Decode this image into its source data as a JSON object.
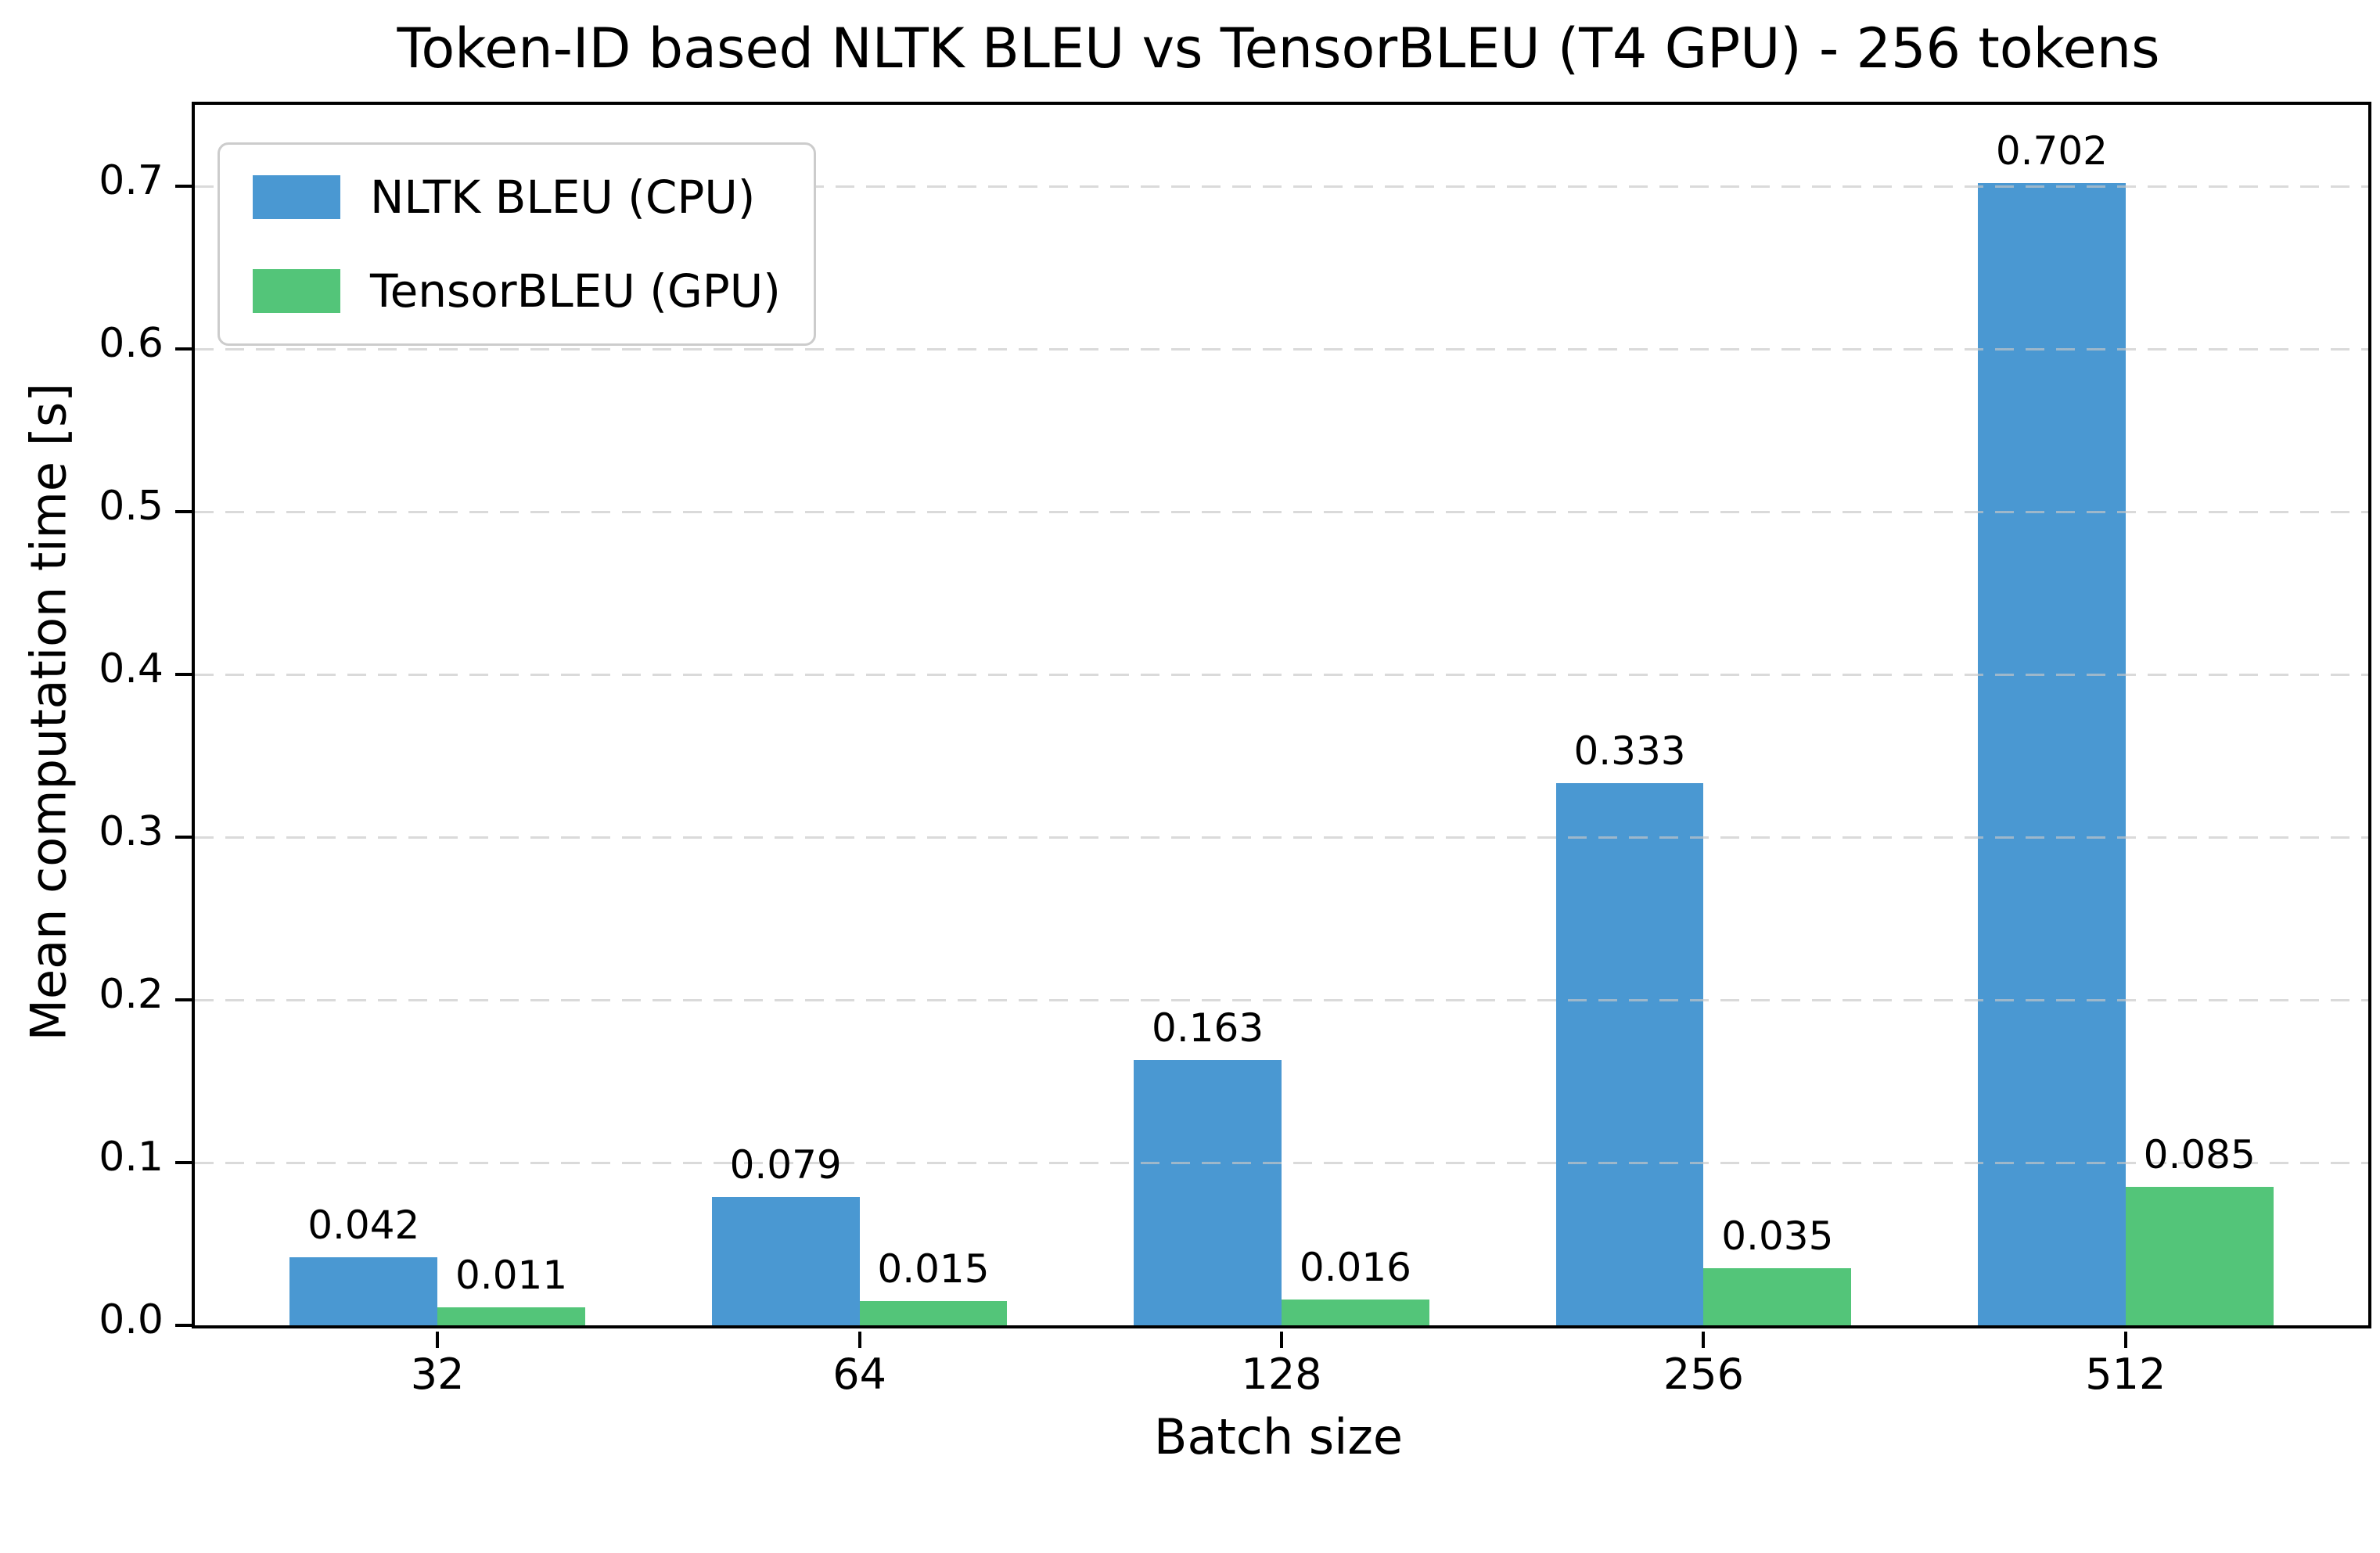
{
  "chart_data": {
    "type": "bar",
    "title": "Token-ID based NLTK BLEU vs TensorBLEU (T4 GPU) - 256 tokens",
    "xlabel": "Batch size",
    "ylabel": "Mean computation time [s]",
    "categories": [
      "32",
      "64",
      "128",
      "256",
      "512"
    ],
    "series": [
      {
        "name": "NLTK BLEU (CPU)",
        "color": "#4a98d2",
        "values": [
          0.042,
          0.079,
          0.163,
          0.333,
          0.702
        ],
        "labels": [
          "0.042",
          "0.079",
          "0.163",
          "0.333",
          "0.702"
        ]
      },
      {
        "name": "TensorBLEU (GPU)",
        "color": "#53c579",
        "values": [
          0.011,
          0.015,
          0.016,
          0.035,
          0.085
        ],
        "labels": [
          "0.011",
          "0.015",
          "0.016",
          "0.035",
          "0.085"
        ]
      }
    ],
    "ylim": [
      0,
      0.75
    ],
    "yticks": [
      "0.0",
      "0.1",
      "0.2",
      "0.3",
      "0.4",
      "0.5",
      "0.6",
      "0.7"
    ],
    "grid": {
      "axis": "y",
      "style": "dashed",
      "color": "#c7c7c7",
      "on_top": true
    },
    "legend_position": "upper left",
    "bar_width_fraction": 0.35,
    "group_edge_margin": 0.575
  },
  "style_colors": {
    "spine": "#000000",
    "text": "#000000",
    "legend_border": "#cccccc",
    "background": "#ffffff"
  }
}
